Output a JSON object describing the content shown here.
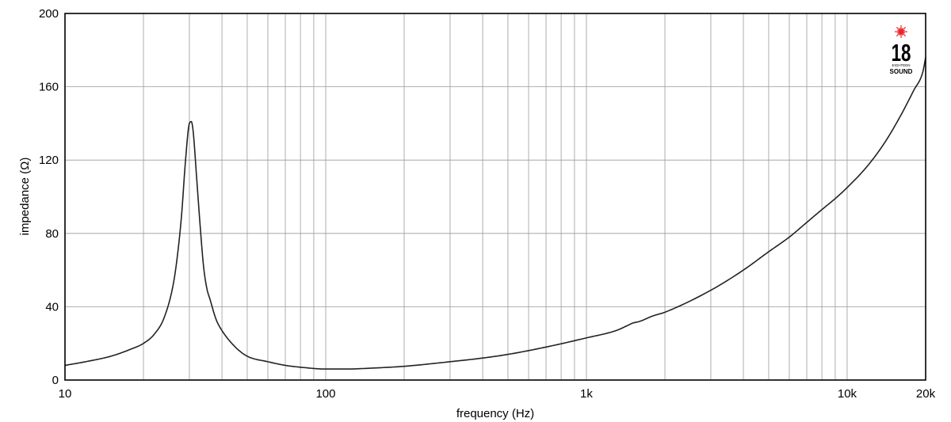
{
  "chart_data": {
    "type": "line",
    "title": "",
    "xlabel": "frequency (Hz)",
    "ylabel": "impedance (Ω)",
    "xscale": "log",
    "xlim": [
      10,
      20000
    ],
    "ylim": [
      0,
      200
    ],
    "grid": true,
    "x_ticks": [
      {
        "value": 10,
        "label": "10"
      },
      {
        "value": 100,
        "label": "100"
      },
      {
        "value": 1000,
        "label": "1k"
      },
      {
        "value": 10000,
        "label": "10k"
      },
      {
        "value": 20000,
        "label": "20k"
      }
    ],
    "y_ticks": [
      {
        "value": 0,
        "label": "0"
      },
      {
        "value": 40,
        "label": "40"
      },
      {
        "value": 80,
        "label": "80"
      },
      {
        "value": 120,
        "label": "120"
      },
      {
        "value": 160,
        "label": "160"
      },
      {
        "value": 200,
        "label": "200"
      }
    ],
    "x_grid": [
      20,
      30,
      40,
      50,
      60,
      70,
      80,
      90,
      200,
      300,
      400,
      500,
      600,
      700,
      800,
      900,
      2000,
      3000,
      4000,
      5000,
      6000,
      7000,
      8000,
      9000
    ],
    "y_grid": [
      40,
      80,
      120,
      160
    ],
    "series": [
      {
        "color": "#222222",
        "x": [
          10,
          12,
          15,
          18,
          20,
          22,
          24,
          26,
          27,
          28,
          29,
          30,
          30.5,
          31,
          32,
          33,
          34,
          35,
          36,
          38,
          40,
          45,
          50,
          60,
          70,
          80,
          100,
          120,
          150,
          200,
          300,
          400,
          500,
          700,
          1000,
          1300,
          1450,
          1500,
          1600,
          1800,
          2000,
          3000,
          4000,
          5000,
          6000,
          7000,
          8000,
          9000,
          10000,
          12000,
          14000,
          16000,
          18000,
          19500,
          20000
        ],
        "y": [
          8,
          10,
          13,
          17,
          20,
          25,
          34,
          52,
          68,
          90,
          120,
          140,
          141,
          136,
          110,
          84,
          62,
          50,
          44,
          33,
          27,
          18,
          13,
          10,
          8,
          7,
          6,
          6,
          6.5,
          7.5,
          10,
          12,
          14,
          18,
          23,
          27,
          30,
          31,
          32,
          35,
          37,
          49,
          60,
          70,
          78,
          86,
          93,
          99,
          105,
          117,
          130,
          144,
          158,
          168,
          176
        ]
      }
    ]
  },
  "logo": {
    "number": "18",
    "small_text": "EIGHTEEN",
    "name": "SOUND",
    "star_color": "#e8262a"
  }
}
